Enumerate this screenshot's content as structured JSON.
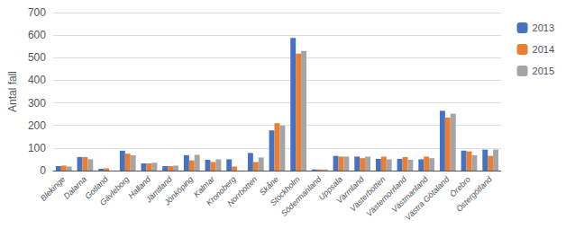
{
  "chart_data": {
    "type": "bar",
    "categories": [
      "Blekinge",
      "Dalarna",
      "Gotland",
      "Gävleborg",
      "Halland",
      "Jämtland",
      "Jönköping",
      "Kalmar",
      "Kronoberg",
      "Norrbotten",
      "Skåne",
      "Stockholm",
      "Södermanland",
      "Uppsala",
      "Värmland",
      "Västerbotten",
      "Västernorrland",
      "Västmanland",
      "Västra Götaland",
      "Örebro",
      "Östergötland"
    ],
    "series": [
      {
        "name": "2013",
        "color": "#4472C4",
        "values": [
          20,
          60,
          8,
          88,
          32,
          20,
          68,
          48,
          50,
          78,
          178,
          588,
          5,
          65,
          62,
          52,
          52,
          50,
          265,
          88,
          93
        ]
      },
      {
        "name": "2014",
        "color": "#ED7D31",
        "values": [
          22,
          60,
          10,
          75,
          32,
          20,
          45,
          38,
          18,
          38,
          210,
          518,
          5,
          62,
          55,
          62,
          60,
          62,
          235,
          85,
          65
        ]
      },
      {
        "name": "2015",
        "color": "#A5A5A5",
        "values": [
          18,
          50,
          0,
          68,
          35,
          22,
          70,
          50,
          0,
          58,
          200,
          530,
          5,
          62,
          62,
          50,
          48,
          55,
          252,
          68,
          93
        ]
      }
    ],
    "ylabel": "Antal fall",
    "ylim": [
      0,
      700
    ],
    "yticks": [
      0,
      100,
      200,
      300,
      400,
      500,
      600,
      700
    ],
    "grid": true,
    "legend": "right"
  }
}
